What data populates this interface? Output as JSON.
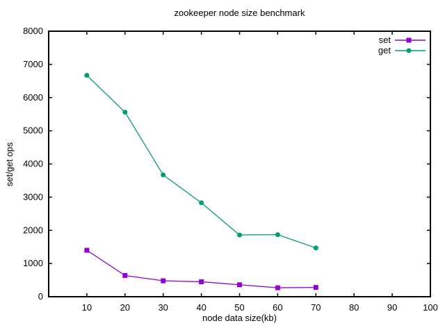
{
  "chart_data": {
    "type": "line",
    "title": "zookeeper node size benchmark",
    "xlabel": "node data size(kb)",
    "ylabel": "set/get ops",
    "xlim": [
      0,
      100
    ],
    "ylim": [
      0,
      8000
    ],
    "xticks": [
      10,
      20,
      30,
      40,
      50,
      60,
      70,
      80,
      90,
      100
    ],
    "yticks": [
      0,
      1000,
      2000,
      3000,
      4000,
      5000,
      6000,
      7000,
      8000
    ],
    "grid": false,
    "legend_position": "top-right-inside",
    "x": [
      10,
      20,
      30,
      40,
      50,
      60,
      70
    ],
    "series": [
      {
        "name": "set",
        "color": "#9400d3",
        "marker": "square",
        "values": [
          1400,
          640,
          480,
          450,
          360,
          270,
          280
        ]
      },
      {
        "name": "get",
        "color": "#009e73",
        "marker": "circle",
        "values": [
          6670,
          5560,
          3670,
          2830,
          1860,
          1870,
          1470
        ]
      }
    ]
  },
  "colors": {
    "background": "#ffffff",
    "axis": "#000000",
    "text": "#000000"
  }
}
